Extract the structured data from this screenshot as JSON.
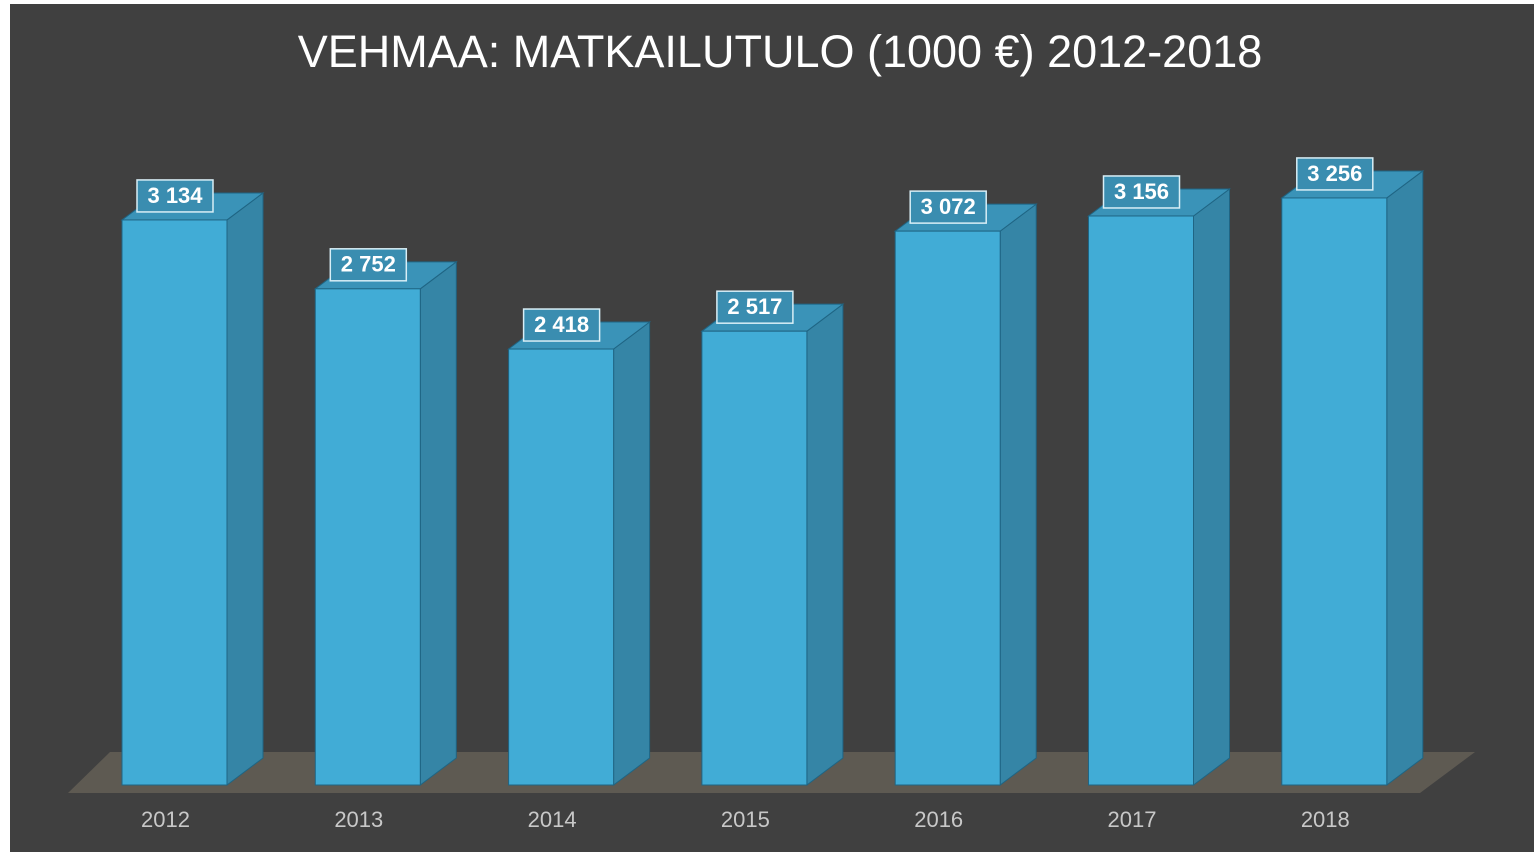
{
  "chart_data": {
    "type": "bar3d",
    "title": "VEHMAA: MATKAILUTULO (1000 €) 2012-2018",
    "categories": [
      "2012",
      "2013",
      "2014",
      "2015",
      "2016",
      "2017",
      "2018"
    ],
    "values": [
      3134,
      2752,
      2418,
      2517,
      3072,
      3156,
      3256
    ],
    "value_labels": [
      "3 134",
      "2 752",
      "2 418",
      "2 517",
      "3 072",
      "3 156",
      "3 256"
    ],
    "color": "#41acd6"
  }
}
